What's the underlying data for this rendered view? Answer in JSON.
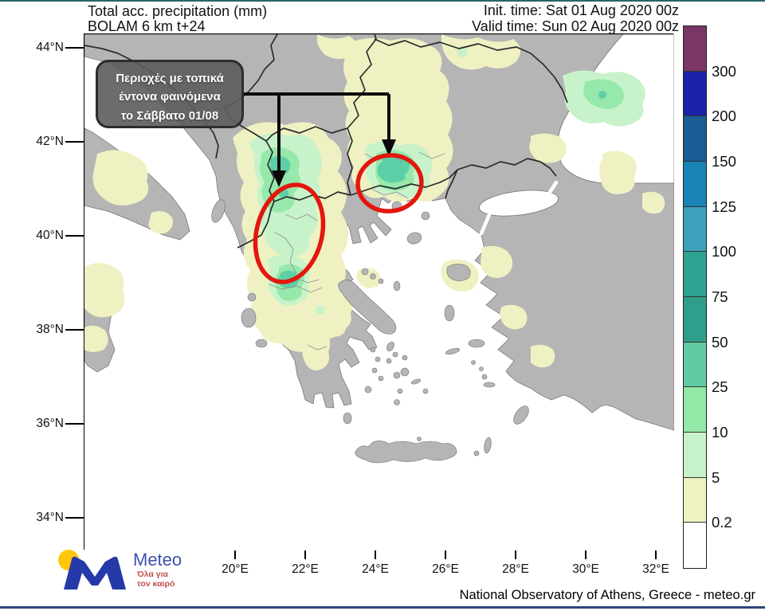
{
  "header": {
    "title_line1": "Total acc. precipitation (mm)",
    "title_line2": "BOLAM 6 km t+24",
    "init_time": "Init. time: Sat 01 Aug 2020 00z",
    "valid_time": "Valid time: Sun 02 Aug 2020 00z"
  },
  "map": {
    "annotation": {
      "line1": "Περιοχές με τοπικά",
      "line2": "έντονα φαινόμενα",
      "line3": "το Σάββατο 01/08"
    },
    "axes": {
      "y_labels": [
        "44°N",
        "42°N",
        "40°N",
        "38°N",
        "36°N",
        "34°N"
      ],
      "x_labels": [
        "20°E",
        "22°E",
        "24°E",
        "26°E",
        "28°E",
        "30°E",
        "32°E"
      ]
    }
  },
  "colorbar": {
    "labels_top_to_bottom": [
      "300",
      "200",
      "150",
      "125",
      "100",
      "75",
      "50",
      "25",
      "10",
      "5",
      "0.2"
    ],
    "segment_colors_top_to_bottom": [
      "#7A3765",
      "#1C22A8",
      "#1A5C95",
      "#1A83B5",
      "#3DA0BC",
      "#2FA191",
      "#2F9F8B",
      "#62CBA1",
      "#93E7A7",
      "#C7F2C9",
      "#EFF1C2",
      "#FFFFFF"
    ]
  },
  "footer": {
    "credit": "National Observatory of Athens, Greece - meteo.gr",
    "logo_brand": "Meteo",
    "logo_tagline_line1": "Όλα για",
    "logo_tagline_line2": "τον καιρό"
  },
  "accents": {
    "highlight_red": "#E3170D",
    "arrow_black": "#0a0a0a",
    "land_gray": "#B5B5B5",
    "sea_white": "#FFFFFF",
    "brand_blue": "#2539A8",
    "brand_yellow": "#FFC60B",
    "tagline_red": "#C0504D",
    "bottom_bar_blue": "#2F4579",
    "top_bar_teal": "#2a6468"
  }
}
